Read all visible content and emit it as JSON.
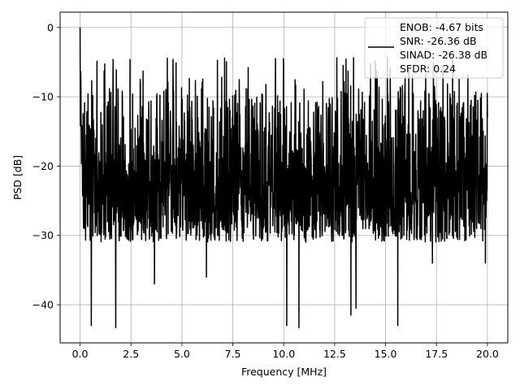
{
  "chart_data": {
    "type": "line",
    "title": "",
    "xlabel": "Frequency [MHz]",
    "ylabel": "PSD [dB]",
    "xlim": [
      -0.98,
      21.0
    ],
    "ylim": [
      -45.5,
      2.2
    ],
    "xticks": [
      0.0,
      2.5,
      5.0,
      7.5,
      10.0,
      12.5,
      15.0,
      17.5,
      20.0
    ],
    "xtick_labels": [
      "0.0",
      "2.5",
      "5.0",
      "7.5",
      "10.0",
      "12.5",
      "15.0",
      "17.5",
      "20.0"
    ],
    "yticks": [
      0,
      -10,
      -20,
      -30,
      -40
    ],
    "ytick_labels": [
      "0",
      "−10",
      "−20",
      "−30",
      "−40"
    ],
    "grid": true,
    "legend_position": "top-right",
    "legend_lines": [
      "ENOB: -4.67 bits",
      "SNR: -26.36 dB",
      "SINAD: -26.38 dB",
      "SFDR: 0.24"
    ],
    "series": [
      {
        "color": "#000000",
        "x_start": 0.0,
        "x_end": 20.0,
        "description_values": {
          "peak": [
            0.0,
            0.0
          ],
          "envelope_top_approx": -4.5,
          "envelope_bottom_typical": -30.0,
          "notable_dips": [
            [
              0.55,
              -43.0
            ],
            [
              1.75,
              -43.3
            ],
            [
              3.65,
              -37.0
            ],
            [
              6.2,
              -36.0
            ],
            [
              10.15,
              -43.0
            ],
            [
              10.75,
              -43.3
            ],
            [
              13.3,
              -41.5
            ],
            [
              13.55,
              -40.5
            ],
            [
              15.6,
              -43.0
            ],
            [
              17.3,
              -34.0
            ],
            [
              19.9,
              -34.0
            ]
          ]
        }
      }
    ]
  }
}
